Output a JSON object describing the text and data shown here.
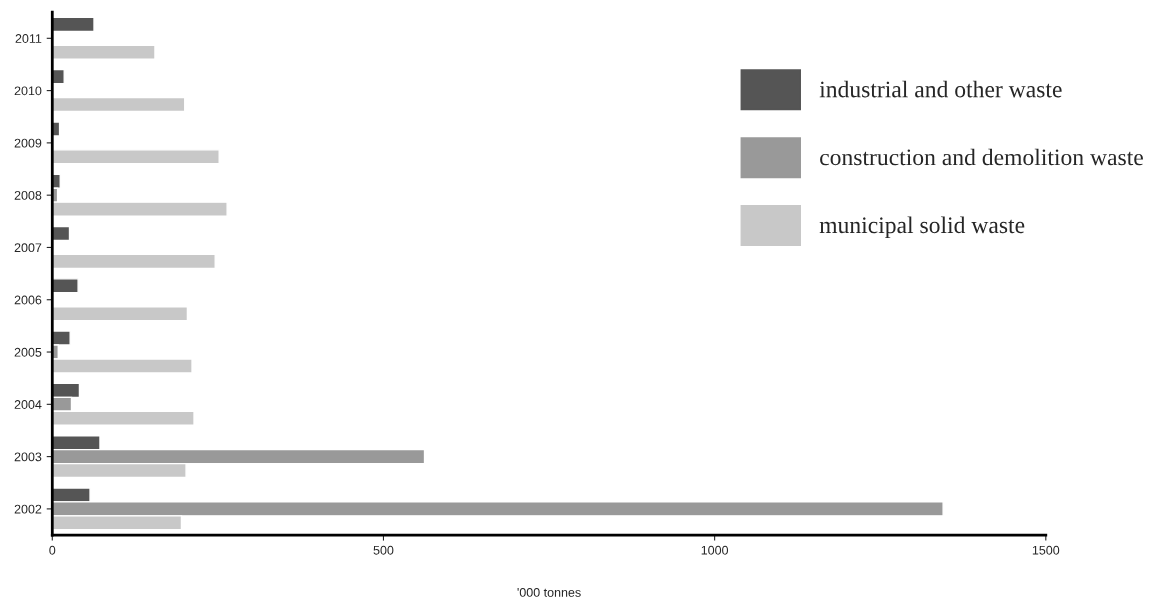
{
  "chart_data": {
    "type": "bar",
    "orientation": "horizontal",
    "xlabel": "'000 tonnes",
    "categories": [
      "2011",
      "2010",
      "2009",
      "2008",
      "2007",
      "2006",
      "2005",
      "2004",
      "2003",
      "2002"
    ],
    "series": [
      {
        "name": "industrial and other waste",
        "color": "#555555",
        "values": [
          63,
          18,
          11,
          12,
          26,
          39,
          27,
          41,
          72,
          57
        ]
      },
      {
        "name": "construction and demolition waste",
        "color": "#999999",
        "values": [
          null,
          null,
          null,
          8,
          null,
          null,
          9,
          29,
          562,
          1345
        ]
      },
      {
        "name": "municipal solid waste",
        "color": "#c8c8c8",
        "values": [
          155,
          200,
          252,
          264,
          246,
          204,
          211,
          214,
          202,
          195
        ]
      }
    ],
    "xlim": [
      0,
      1500
    ],
    "xticks": [
      0,
      500,
      1000,
      1500
    ],
    "grid": false,
    "legend": "top right"
  }
}
